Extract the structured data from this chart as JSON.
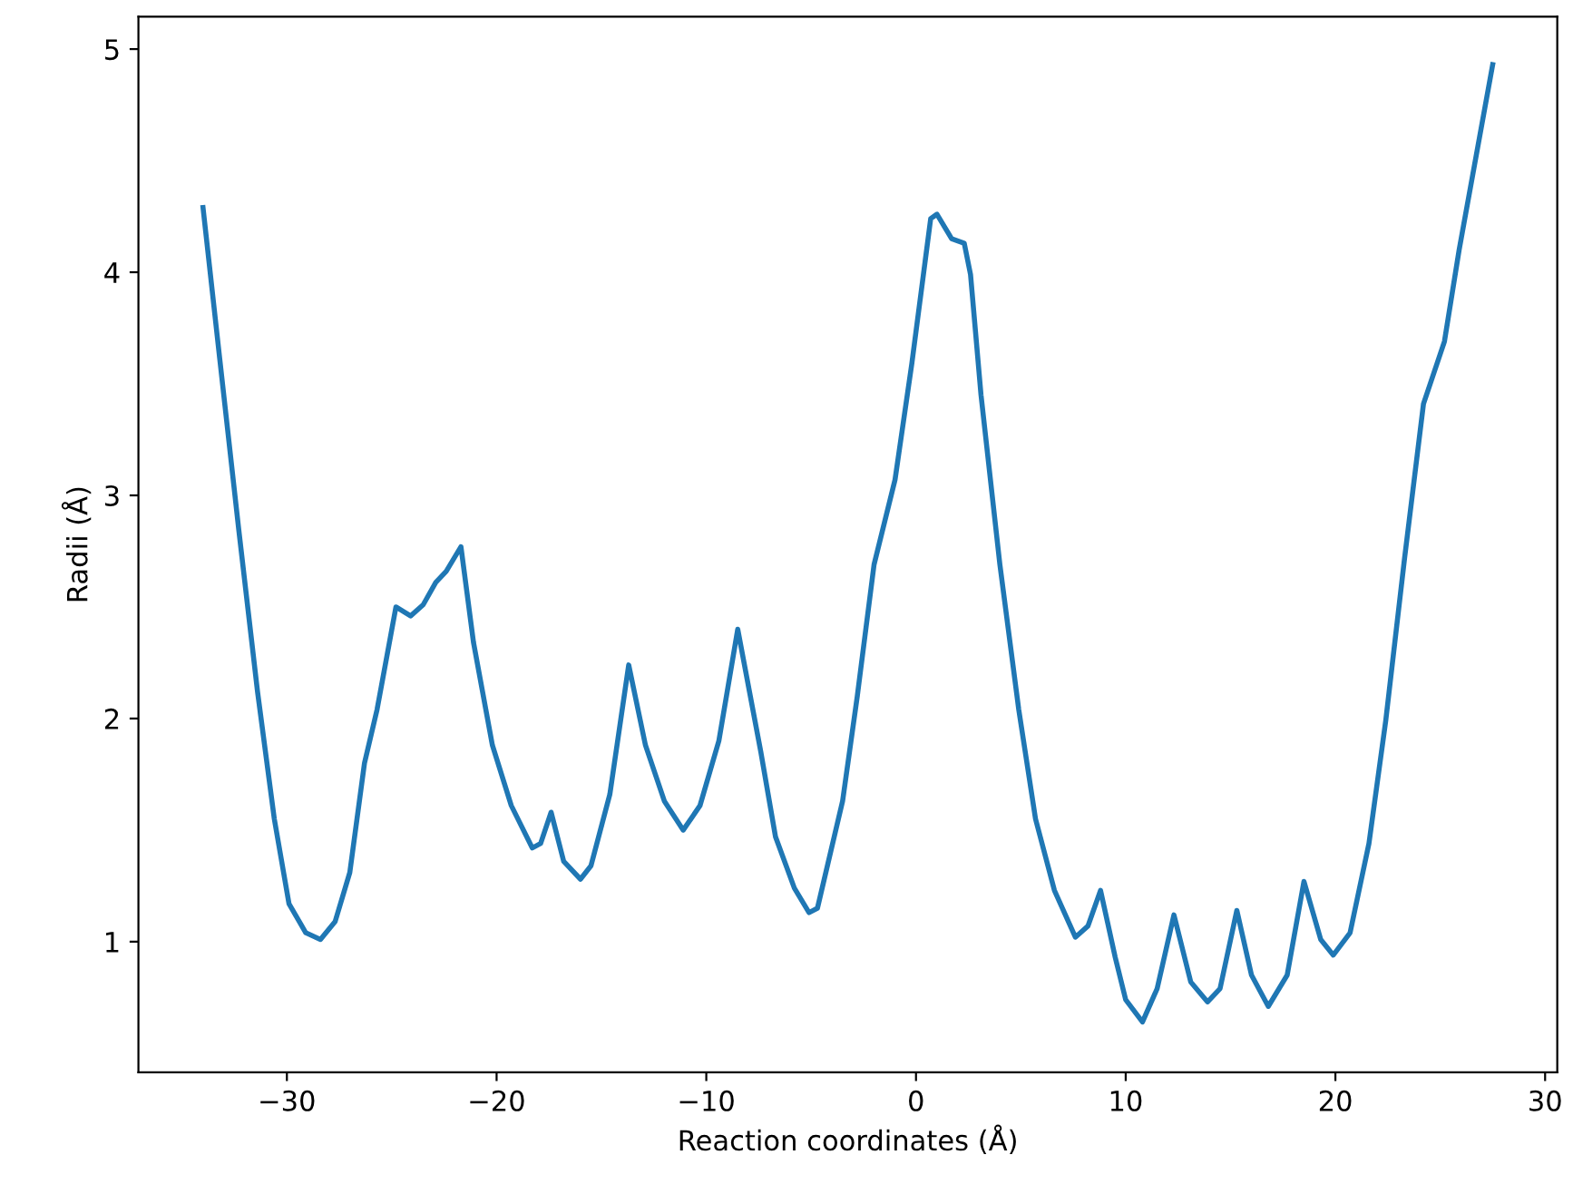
{
  "chart_data": {
    "type": "line",
    "xlabel": "Reaction coordinates (Å)",
    "ylabel": "Radii (Å)",
    "xlim": [
      -37.08,
      30.58
    ],
    "ylim": [
      0.415,
      5.145
    ],
    "xticks": [
      -30,
      -20,
      -10,
      0,
      10,
      20,
      30
    ],
    "yticks": [
      1,
      2,
      3,
      4,
      5
    ],
    "grid": false,
    "legend": false,
    "series": [
      {
        "color": "#1f77b4",
        "x": [
          -34.0,
          -33.2,
          -32.3,
          -31.4,
          -30.6,
          -29.9,
          -29.1,
          -28.4,
          -27.7,
          -27.0,
          -26.3,
          -25.7,
          -24.8,
          -24.1,
          -23.5,
          -22.9,
          -22.4,
          -21.7,
          -21.1,
          -20.2,
          -19.3,
          -18.3,
          -17.9,
          -17.4,
          -16.8,
          -16.0,
          -15.5,
          -14.6,
          -13.7,
          -12.9,
          -12.0,
          -11.1,
          -10.3,
          -9.4,
          -8.5,
          -7.4,
          -6.7,
          -5.8,
          -5.1,
          -4.7,
          -3.5,
          -2.8,
          -2.0,
          -1.0,
          -0.2,
          0.7,
          1.0,
          1.7,
          2.3,
          2.6,
          3.1,
          4.0,
          4.9,
          5.7,
          6.6,
          7.6,
          8.2,
          8.8,
          9.5,
          10.0,
          10.8,
          11.5,
          12.3,
          13.1,
          13.9,
          14.5,
          15.3,
          16.0,
          16.8,
          17.7,
          18.5,
          19.3,
          19.9,
          20.7,
          21.6,
          22.4,
          23.3,
          24.2,
          25.2,
          25.9,
          27.5
        ],
        "values": [
          4.29,
          3.61,
          2.85,
          2.12,
          1.55,
          1.17,
          1.04,
          1.01,
          1.09,
          1.31,
          1.8,
          2.04,
          2.5,
          2.46,
          2.51,
          2.61,
          2.66,
          2.77,
          2.34,
          1.88,
          1.61,
          1.42,
          1.44,
          1.58,
          1.36,
          1.28,
          1.34,
          1.66,
          2.24,
          1.88,
          1.63,
          1.5,
          1.61,
          1.9,
          2.4,
          1.85,
          1.47,
          1.24,
          1.13,
          1.15,
          1.63,
          2.1,
          2.69,
          3.07,
          3.59,
          4.24,
          4.26,
          4.15,
          4.13,
          3.99,
          3.45,
          2.69,
          2.04,
          1.55,
          1.23,
          1.02,
          1.07,
          1.23,
          0.93,
          0.74,
          0.64,
          0.79,
          1.12,
          0.82,
          0.73,
          0.79,
          1.14,
          0.85,
          0.71,
          0.85,
          1.27,
          1.01,
          0.94,
          1.04,
          1.44,
          1.99,
          2.72,
          3.41,
          3.69,
          4.1,
          4.93
        ]
      }
    ]
  }
}
